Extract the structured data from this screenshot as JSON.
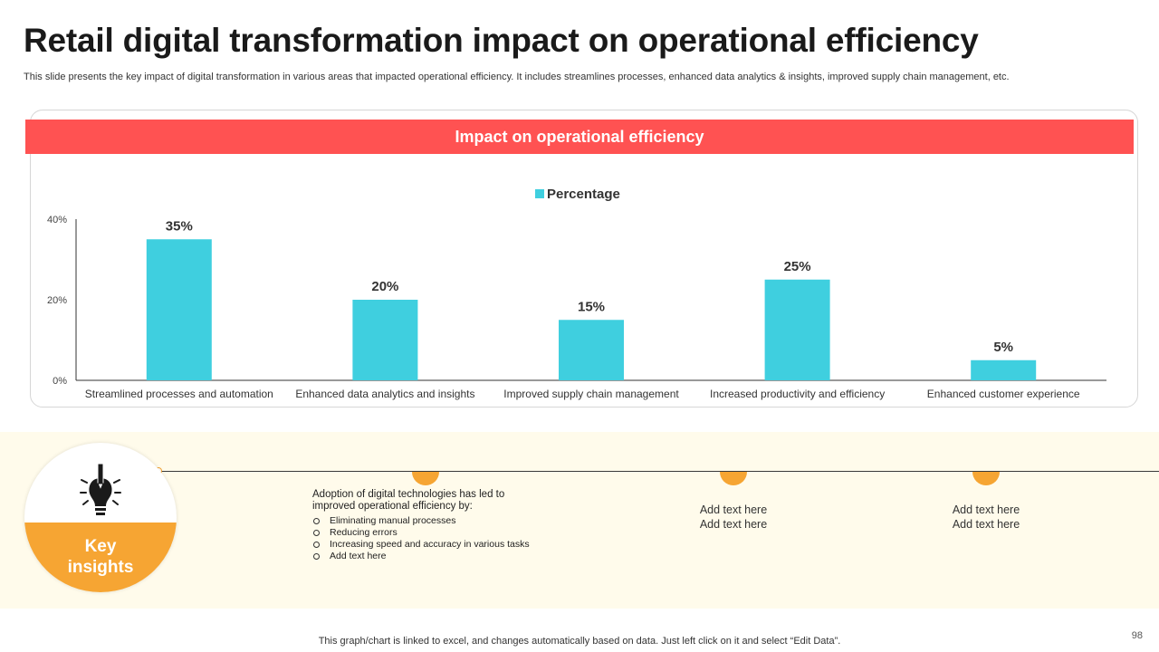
{
  "page": {
    "title": "Retail digital transformation impact on operational efficiency",
    "subtitle": "This slide presents the key impact of digital transformation in various areas that impacted operational efficiency. It includes streamlines processes, enhanced data analytics & insights, improved supply chain management, etc.",
    "footer_note": "This graph/chart is linked to excel,  and changes automatically based on data. Just left click on it and select “Edit Data”.",
    "page_number": "98"
  },
  "chart_header": "Impact on operational efficiency",
  "chart_data": {
    "type": "bar",
    "title": "Impact on operational efficiency",
    "categories": [
      "Streamlined processes and automation",
      "Enhanced data analytics and insights",
      "Improved supply chain management",
      "Increased productivity and efficiency",
      "Enhanced customer experience"
    ],
    "series": [
      {
        "name": "Percentage",
        "values": [
          35,
          20,
          15,
          25,
          5
        ]
      }
    ],
    "data_labels": [
      "35%",
      "20%",
      "15%",
      "25%",
      "5%"
    ],
    "y_ticks": [
      0,
      20,
      40
    ],
    "y_tick_labels": [
      "0%",
      "20%",
      "40%"
    ],
    "ylim": [
      0,
      40
    ],
    "xlabel": "",
    "ylabel": "",
    "legend": "top-center",
    "grid": false,
    "colors": {
      "bar": "#3fcfdf"
    }
  },
  "insights": {
    "label_line1": "Key",
    "label_line2": "insights",
    "main_text": "Adoption of digital technologies has led to improved operational efficiency by:",
    "bullets": [
      "Eliminating  manual processes",
      "Reducing errors",
      "Increasing speed and accuracy in various tasks",
      "Add text here"
    ],
    "placeholder_1": {
      "line1": "Add text here",
      "line2": "Add text here"
    },
    "placeholder_2": {
      "line1": "Add text here",
      "line2": "Add text here"
    }
  },
  "colors": {
    "accent_red": "#ff5252",
    "accent_orange": "#f6a533",
    "band_bg": "#fffbeb"
  },
  "icons": {
    "insight_icon": "lightbulb-pencil-icon"
  }
}
